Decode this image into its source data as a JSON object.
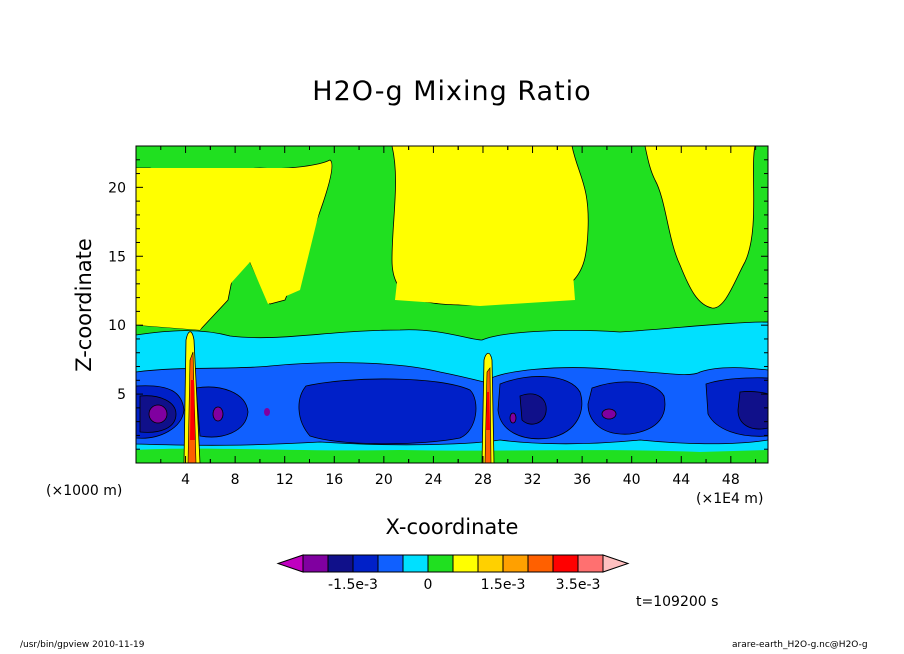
{
  "chart_data": {
    "type": "heatmap",
    "title": "H2O-g Mixing Ratio",
    "xlabel": "X-coordinate",
    "ylabel": "Z-coordinate",
    "x_unit": "(×1E4 m)",
    "z_unit": "(×1000 m)",
    "x_ticks": [
      "4",
      "8",
      "12",
      "16",
      "20",
      "24",
      "28",
      "32",
      "36",
      "40",
      "44",
      "48"
    ],
    "y_ticks": [
      "5",
      "10",
      "15",
      "20"
    ],
    "xlim": [
      0,
      51
    ],
    "ylim": [
      0,
      23
    ],
    "colorbar": {
      "colors": [
        "#c000c0",
        "#8000a0",
        "#10108a",
        "#0020c8",
        "#1060ff",
        "#00e0ff",
        "#20e020",
        "#ffff00",
        "#ffd000",
        "#ffa000",
        "#ff6000",
        "#ff0000",
        "#ff7070",
        "#ffc0c0"
      ],
      "labels": [
        "-1.5e-3",
        "0",
        "1.5e-3",
        "3.5e-3"
      ]
    },
    "annotation_time": "t=109200 s"
  },
  "footer": {
    "left": "/usr/bin/gpview   2010-11-19",
    "right": "arare-earth_H2O-g.nc@H2O-g"
  }
}
